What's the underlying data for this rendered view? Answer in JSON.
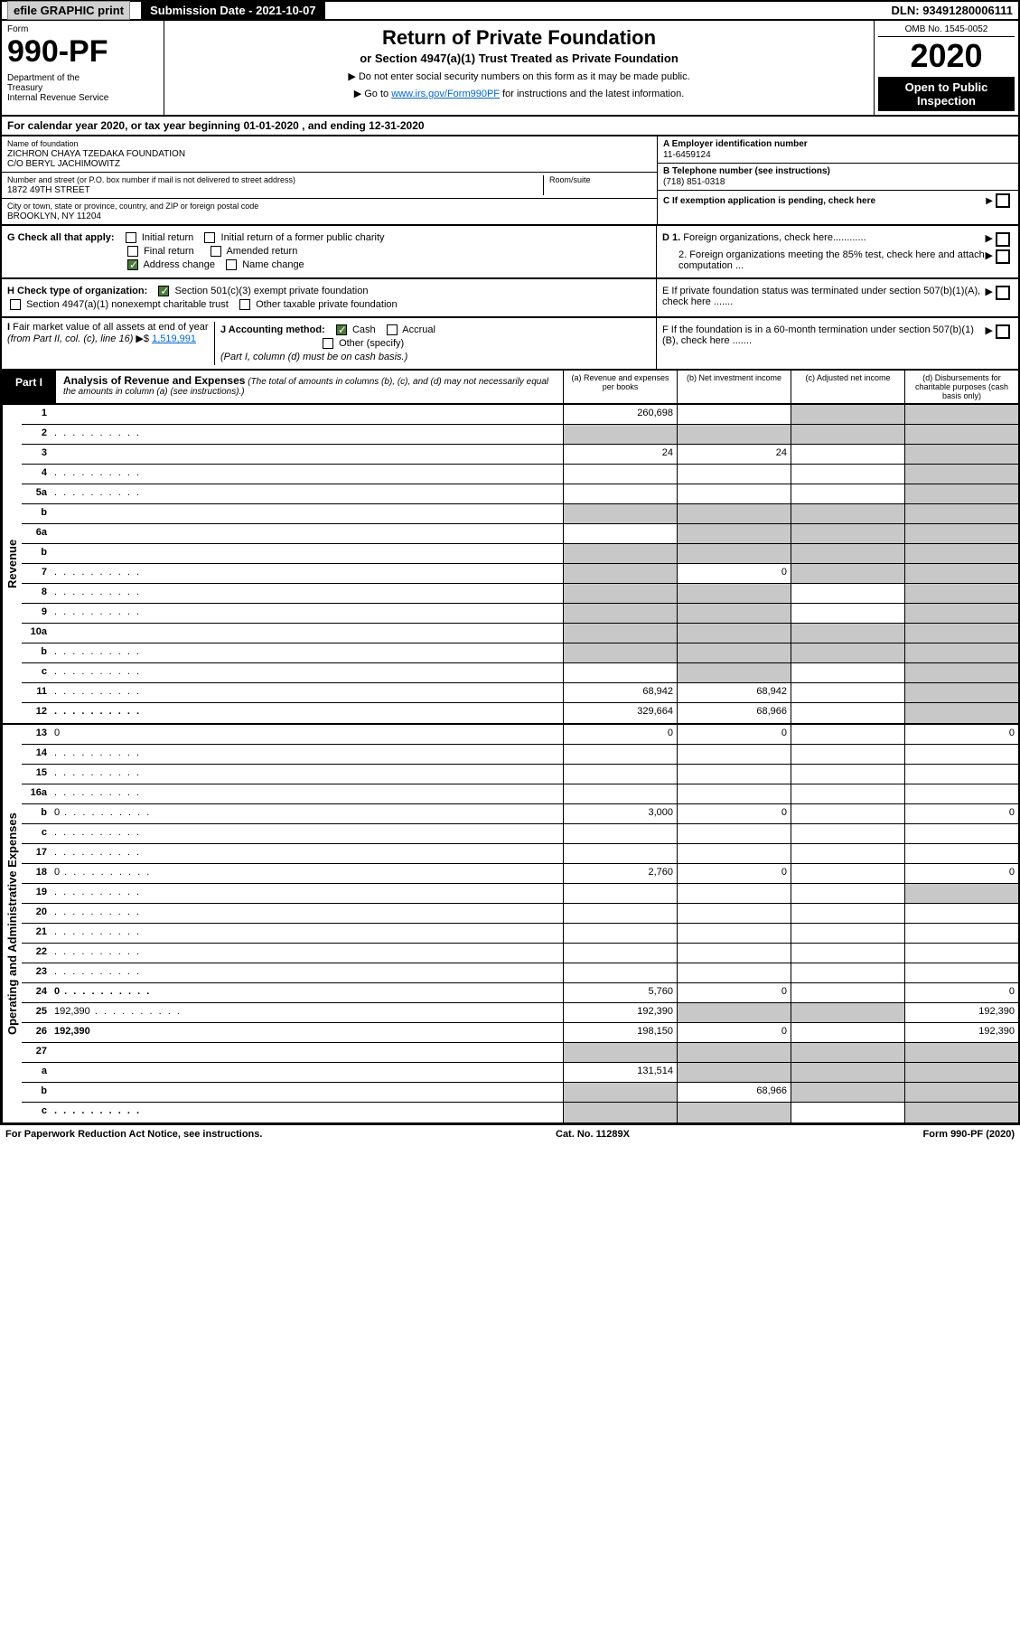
{
  "topbar": {
    "efile": "efile GRAPHIC print",
    "sub_date": "Submission Date - 2021-10-07",
    "dln": "DLN: 93491280006111"
  },
  "header": {
    "form_label": "Form",
    "form_num": "990-PF",
    "dept": "Department of the Treasury\nInternal Revenue Service",
    "title": "Return of Private Foundation",
    "subtitle": "or Section 4947(a)(1) Trust Treated as Private Foundation",
    "note1": "▶ Do not enter social security numbers on this form as it may be made public.",
    "note2_pre": "▶ Go to ",
    "note2_link": "www.irs.gov/Form990PF",
    "note2_post": " for instructions and the latest information.",
    "omb": "OMB No. 1545-0052",
    "year": "2020",
    "open": "Open to Public Inspection"
  },
  "cal_year": "For calendar year 2020, or tax year beginning 01-01-2020          , and ending 12-31-2020",
  "info": {
    "name_label": "Name of foundation",
    "name": "ZICHRON CHAYA TZEDAKA FOUNDATION\nC/O BERYL JACHIMOWITZ",
    "addr_label": "Number and street (or P.O. box number if mail is not delivered to street address)",
    "addr": "1872 49TH STREET",
    "room_label": "Room/suite",
    "city_label": "City or town, state or province, country, and ZIP or foreign postal code",
    "city": "BROOKLYN, NY  11204",
    "a_label": "A Employer identification number",
    "a_val": "11-6459124",
    "b_label": "B Telephone number (see instructions)",
    "b_val": "(718) 851-0318",
    "c_label": "C If exemption application is pending, check here",
    "d1": "D 1. Foreign organizations, check here............",
    "d2": "2. Foreign organizations meeting the 85% test, check here and attach computation ...",
    "e": "E  If private foundation status was terminated under section 507(b)(1)(A), check here .......",
    "f": "F  If the foundation is in a 60-month termination under section 507(b)(1)(B), check here ......."
  },
  "checks": {
    "g_label": "G Check all that apply:",
    "g_opts": [
      "Initial return",
      "Initial return of a former public charity",
      "Final return",
      "Amended return",
      "Address change",
      "Name change"
    ],
    "h_label": "H Check type of organization:",
    "h_opts": [
      "Section 501(c)(3) exempt private foundation",
      "Section 4947(a)(1) nonexempt charitable trust",
      "Other taxable private foundation"
    ],
    "i_label": "I Fair market value of all assets at end of year (from Part II, col. (c), line 16) ▶$",
    "i_val": "1,519,991",
    "j_label": "J Accounting method:",
    "j_opts": [
      "Cash",
      "Accrual",
      "Other (specify)"
    ],
    "j_note": "(Part I, column (d) must be on cash basis.)"
  },
  "part1": {
    "label": "Part I",
    "title": "Analysis of Revenue and Expenses",
    "desc": "(The total of amounts in columns (b), (c), and (d) may not necessarily equal the amounts in column (a) (see instructions).)",
    "cols": [
      "(a)   Revenue and expenses per books",
      "(b)   Net investment income",
      "(c)   Adjusted net income",
      "(d)   Disbursements for charitable purposes (cash basis only)"
    ]
  },
  "sections": {
    "revenue": "Revenue",
    "expenses": "Operating and Administrative Expenses"
  },
  "rows": [
    {
      "n": "1",
      "d": "",
      "a": "260,698",
      "b": "",
      "c": "",
      "shade": [
        "c",
        "d"
      ]
    },
    {
      "n": "2",
      "d": "",
      "dotted": true,
      "a": "",
      "b": "",
      "c": "",
      "shade": [
        "a",
        "b",
        "c",
        "d"
      ]
    },
    {
      "n": "3",
      "d": "",
      "a": "24",
      "b": "24",
      "c": "",
      "shade": [
        "d"
      ]
    },
    {
      "n": "4",
      "d": "",
      "dotted": true,
      "a": "",
      "b": "",
      "c": "",
      "shade": [
        "d"
      ]
    },
    {
      "n": "5a",
      "d": "",
      "dotted": true,
      "a": "",
      "b": "",
      "c": "",
      "shade": [
        "d"
      ]
    },
    {
      "n": "b",
      "d": "",
      "a": "",
      "b": "",
      "c": "",
      "shade": [
        "a",
        "b",
        "c",
        "d"
      ]
    },
    {
      "n": "6a",
      "d": "",
      "a": "",
      "b": "",
      "c": "",
      "shade": [
        "b",
        "c",
        "d"
      ]
    },
    {
      "n": "b",
      "d": "",
      "a": "",
      "b": "",
      "c": "",
      "shade": [
        "a",
        "b",
        "c",
        "d"
      ]
    },
    {
      "n": "7",
      "d": "",
      "dotted": true,
      "a": "",
      "b": "0",
      "c": "",
      "shade": [
        "a",
        "c",
        "d"
      ]
    },
    {
      "n": "8",
      "d": "",
      "dotted": true,
      "a": "",
      "b": "",
      "c": "",
      "shade": [
        "a",
        "b",
        "d"
      ]
    },
    {
      "n": "9",
      "d": "",
      "dotted": true,
      "a": "",
      "b": "",
      "c": "",
      "shade": [
        "a",
        "b",
        "d"
      ]
    },
    {
      "n": "10a",
      "d": "",
      "a": "",
      "b": "",
      "c": "",
      "shade": [
        "a",
        "b",
        "c",
        "d"
      ]
    },
    {
      "n": "b",
      "d": "",
      "dotted": true,
      "a": "",
      "b": "",
      "c": "",
      "shade": [
        "a",
        "b",
        "c",
        "d"
      ]
    },
    {
      "n": "c",
      "d": "",
      "dotted": true,
      "a": "",
      "b": "",
      "c": "",
      "shade": [
        "b",
        "d"
      ]
    },
    {
      "n": "11",
      "d": "",
      "dotted": true,
      "a": "68,942",
      "b": "68,942",
      "c": "",
      "shade": [
        "d"
      ]
    },
    {
      "n": "12",
      "d": "",
      "bold": true,
      "dotted": true,
      "a": "329,664",
      "b": "68,966",
      "c": "",
      "shade": [
        "d"
      ]
    }
  ],
  "exp_rows": [
    {
      "n": "13",
      "d": "0",
      "a": "0",
      "b": "0",
      "c": ""
    },
    {
      "n": "14",
      "d": "",
      "dotted": true,
      "a": "",
      "b": "",
      "c": ""
    },
    {
      "n": "15",
      "d": "",
      "dotted": true,
      "a": "",
      "b": "",
      "c": ""
    },
    {
      "n": "16a",
      "d": "",
      "dotted": true,
      "a": "",
      "b": "",
      "c": ""
    },
    {
      "n": "b",
      "d": "0",
      "dotted": true,
      "a": "3,000",
      "b": "0",
      "c": ""
    },
    {
      "n": "c",
      "d": "",
      "dotted": true,
      "a": "",
      "b": "",
      "c": ""
    },
    {
      "n": "17",
      "d": "",
      "dotted": true,
      "a": "",
      "b": "",
      "c": ""
    },
    {
      "n": "18",
      "d": "0",
      "dotted": true,
      "a": "2,760",
      "b": "0",
      "c": ""
    },
    {
      "n": "19",
      "d": "",
      "dotted": true,
      "a": "",
      "b": "",
      "c": "",
      "shade": [
        "d"
      ]
    },
    {
      "n": "20",
      "d": "",
      "dotted": true,
      "a": "",
      "b": "",
      "c": ""
    },
    {
      "n": "21",
      "d": "",
      "dotted": true,
      "a": "",
      "b": "",
      "c": ""
    },
    {
      "n": "22",
      "d": "",
      "dotted": true,
      "a": "",
      "b": "",
      "c": ""
    },
    {
      "n": "23",
      "d": "",
      "dotted": true,
      "a": "",
      "b": "",
      "c": ""
    },
    {
      "n": "24",
      "d": "0",
      "bold": true,
      "dotted": true,
      "a": "5,760",
      "b": "0",
      "c": ""
    },
    {
      "n": "25",
      "d": "192,390",
      "dotted": true,
      "a": "192,390",
      "b": "",
      "c": "",
      "shade": [
        "b",
        "c"
      ]
    },
    {
      "n": "26",
      "d": "192,390",
      "bold": true,
      "a": "198,150",
      "b": "0",
      "c": ""
    },
    {
      "n": "27",
      "d": "",
      "a": "",
      "b": "",
      "c": "",
      "shade": [
        "a",
        "b",
        "c",
        "d"
      ]
    },
    {
      "n": "a",
      "d": "",
      "bold": true,
      "a": "131,514",
      "b": "",
      "c": "",
      "shade": [
        "b",
        "c",
        "d"
      ]
    },
    {
      "n": "b",
      "d": "",
      "bold": true,
      "a": "",
      "b": "68,966",
      "c": "",
      "shade": [
        "a",
        "c",
        "d"
      ]
    },
    {
      "n": "c",
      "d": "",
      "bold": true,
      "dotted": true,
      "a": "",
      "b": "",
      "c": "",
      "shade": [
        "a",
        "b",
        "d"
      ]
    }
  ],
  "footer": {
    "left": "For Paperwork Reduction Act Notice, see instructions.",
    "center": "Cat. No. 11289X",
    "right": "Form 990-PF (2020)"
  },
  "colors": {
    "black": "#000000",
    "shade": "#c8c8c8",
    "link": "#0066cc",
    "check": "#4a7a3a"
  }
}
